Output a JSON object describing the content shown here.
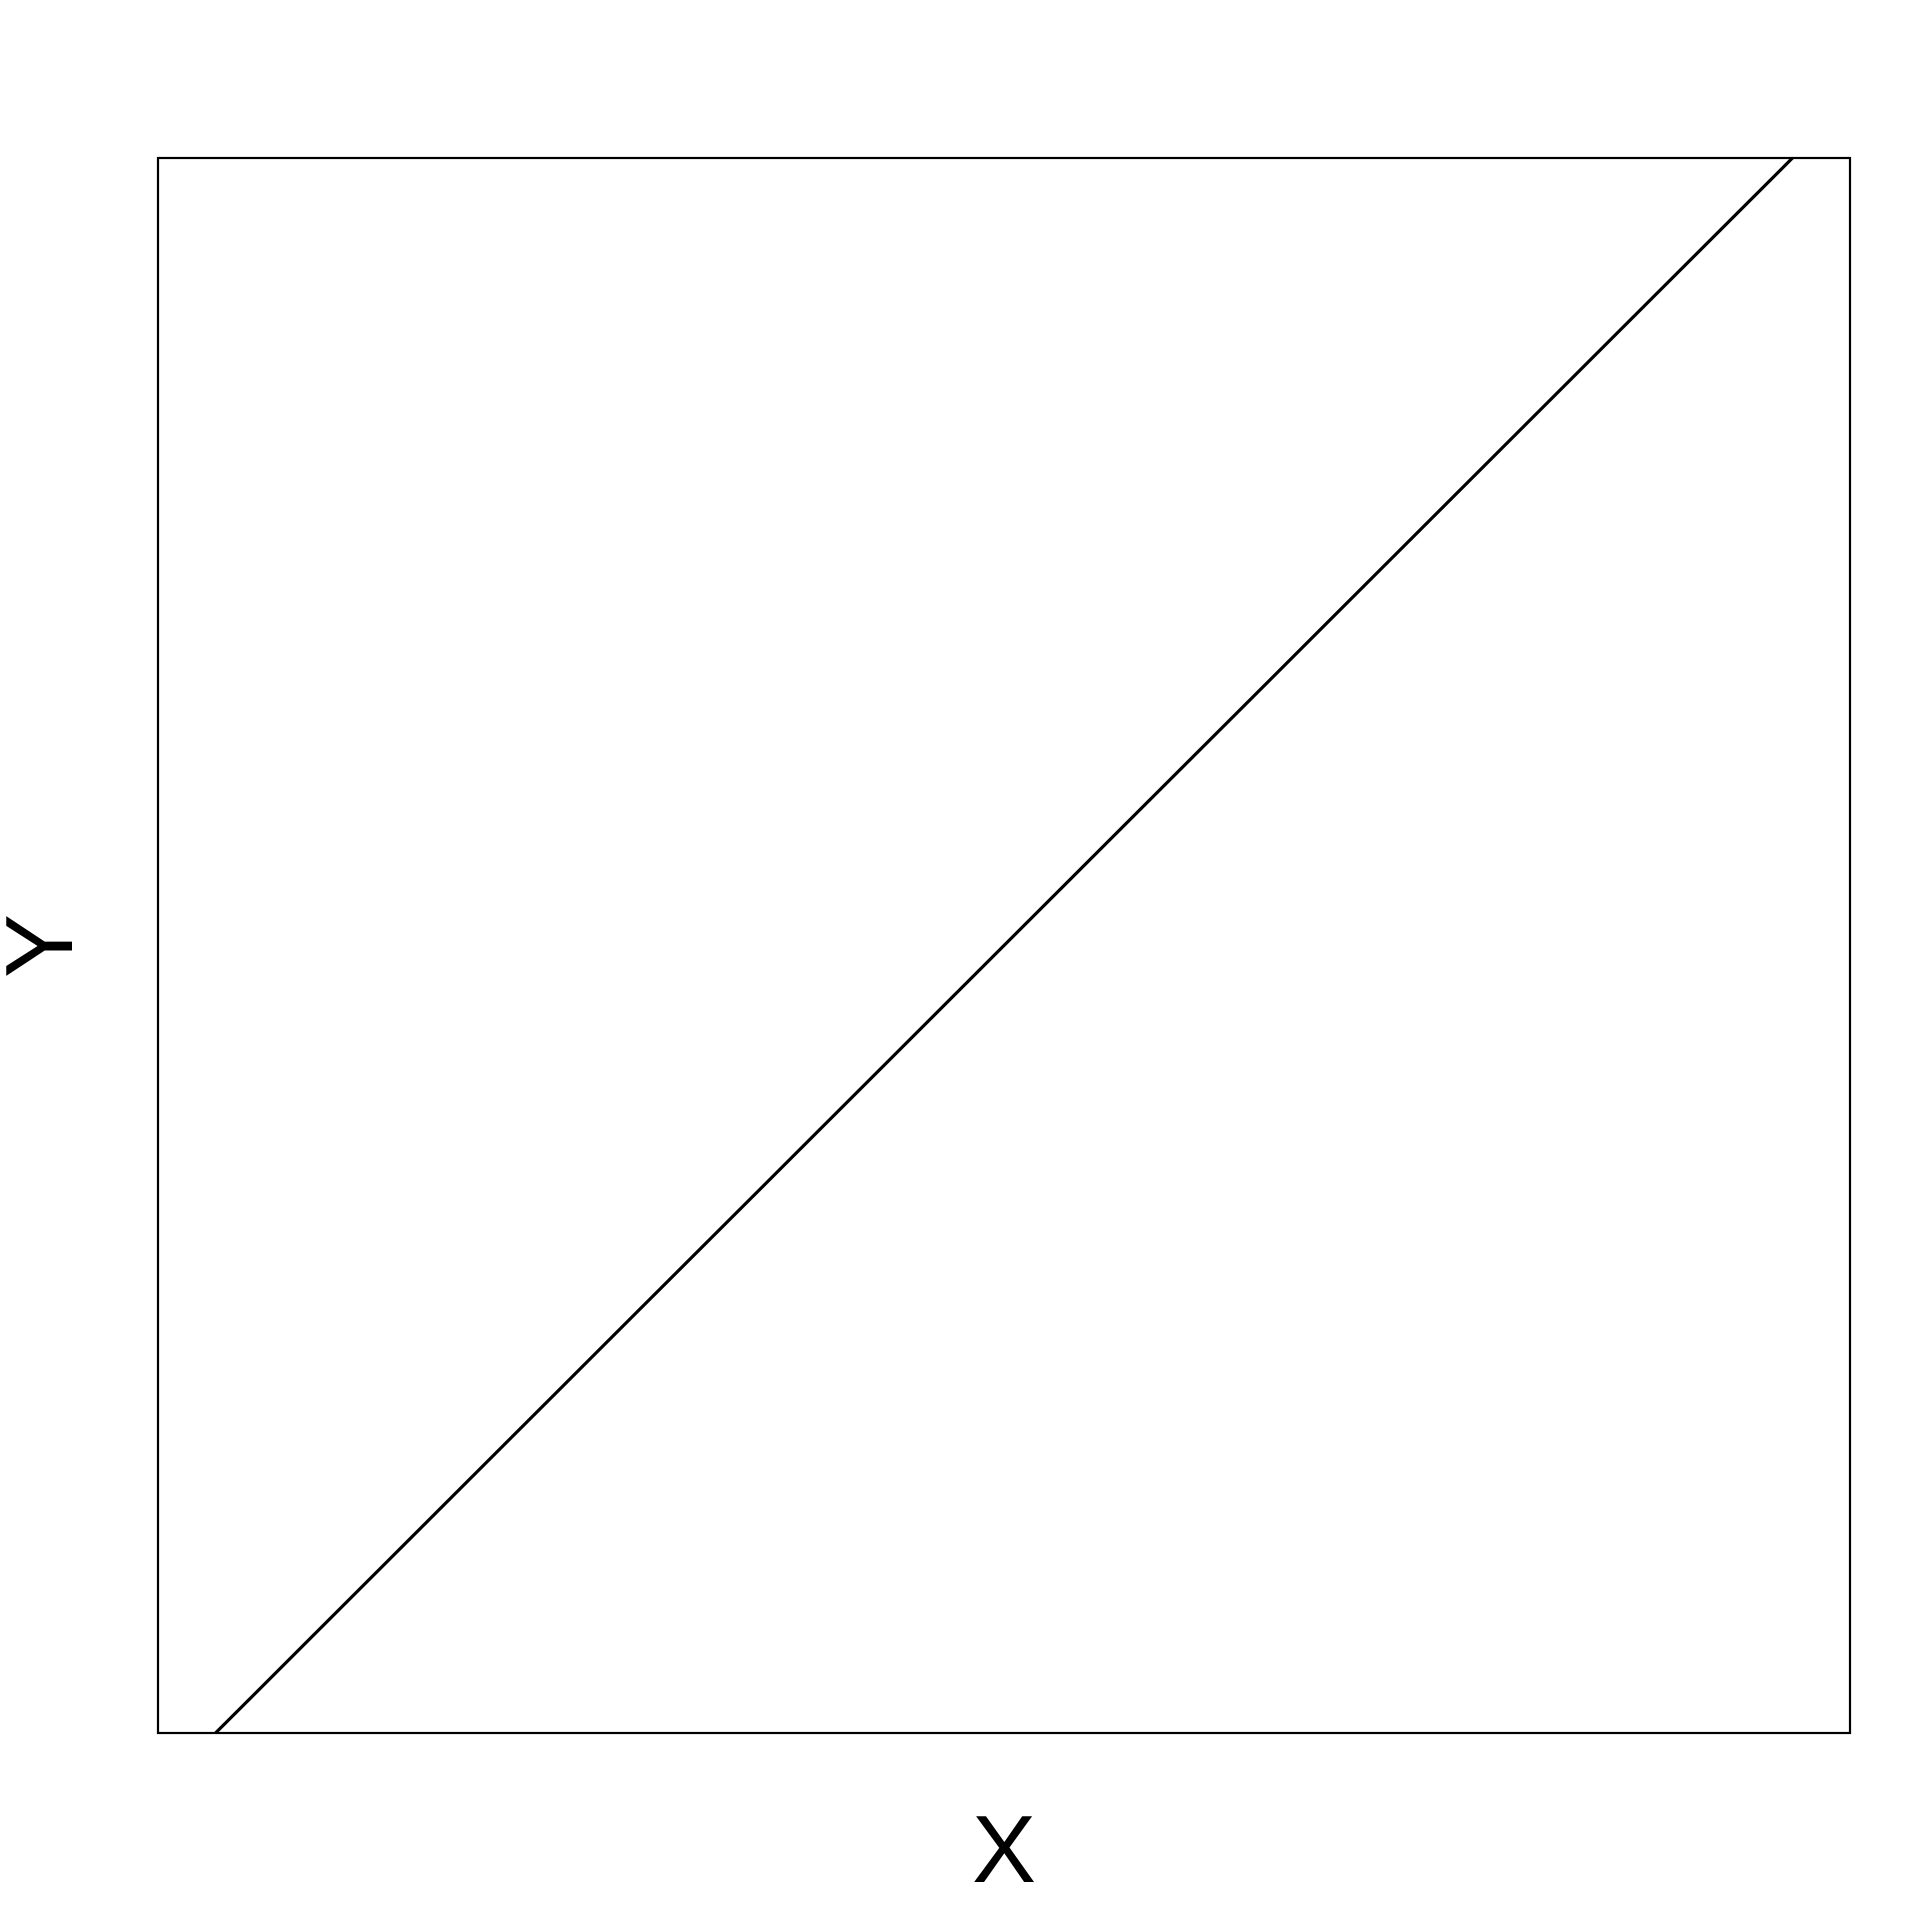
{
  "chart_data": {
    "type": "line",
    "title": "",
    "xlabel": "X",
    "ylabel": "Y",
    "grid": false,
    "legend": "none",
    "xlim": [
      0,
      1
    ],
    "ylim": [
      0,
      1
    ],
    "series": [
      {
        "x": [
          0.034,
          0.966
        ],
        "y": [
          0,
          1
        ],
        "color": "#000000"
      }
    ]
  }
}
